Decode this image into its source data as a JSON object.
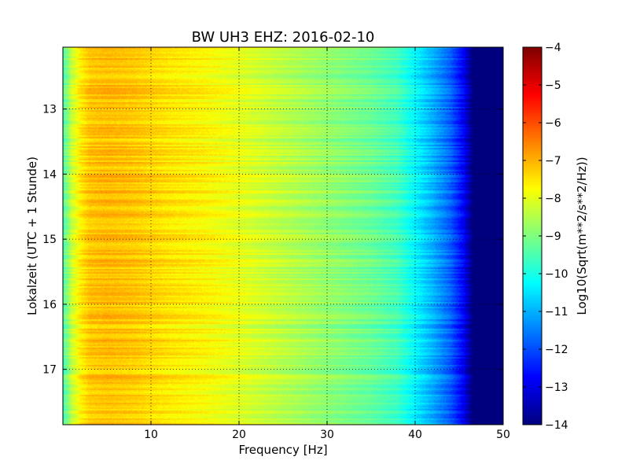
{
  "chart_data": {
    "type": "heatmap",
    "title": "BW UH3 EHZ: 2016-02-10",
    "xlabel": "Frequency [Hz]",
    "ylabel": "Lokalzeit (UTC + 1 Stunde)",
    "xlim": [
      0,
      50
    ],
    "ylim": [
      12.05,
      17.85
    ],
    "y_inverted": true,
    "x_ticks": [
      10,
      20,
      30,
      40,
      50
    ],
    "x_tick_labels": [
      "10",
      "20",
      "30",
      "40",
      "50"
    ],
    "y_ticks": [
      13,
      14,
      15,
      16,
      17
    ],
    "y_tick_labels": [
      "13",
      "14",
      "15",
      "16",
      "17"
    ],
    "grid": true,
    "colormap": "jet",
    "colorbar": {
      "label": "Log10(Sqrt(m**2/s**2/Hz))",
      "range": [
        -14,
        -4
      ],
      "ticks": [
        -4,
        -5,
        -6,
        -7,
        -8,
        -9,
        -10,
        -11,
        -12,
        -13,
        -14
      ],
      "tick_labels": [
        "−4",
        "−5",
        "−6",
        "−7",
        "−8",
        "−9",
        "−10",
        "−11",
        "−12",
        "−13",
        "−14"
      ]
    },
    "spectrum_profile": {
      "frequency_hz": [
        0,
        0.5,
        1,
        2,
        3,
        5,
        8,
        12,
        16,
        20,
        25,
        30,
        35,
        38,
        40,
        42,
        44,
        45.5,
        46.5,
        50
      ],
      "level": [
        -9.5,
        -9.0,
        -8.3,
        -7.6,
        -7.2,
        -7.1,
        -7.2,
        -7.5,
        -7.7,
        -8.0,
        -8.4,
        -8.8,
        -9.2,
        -9.6,
        -10.3,
        -11.0,
        -11.8,
        -12.8,
        -14.0,
        -14.0
      ]
    }
  }
}
